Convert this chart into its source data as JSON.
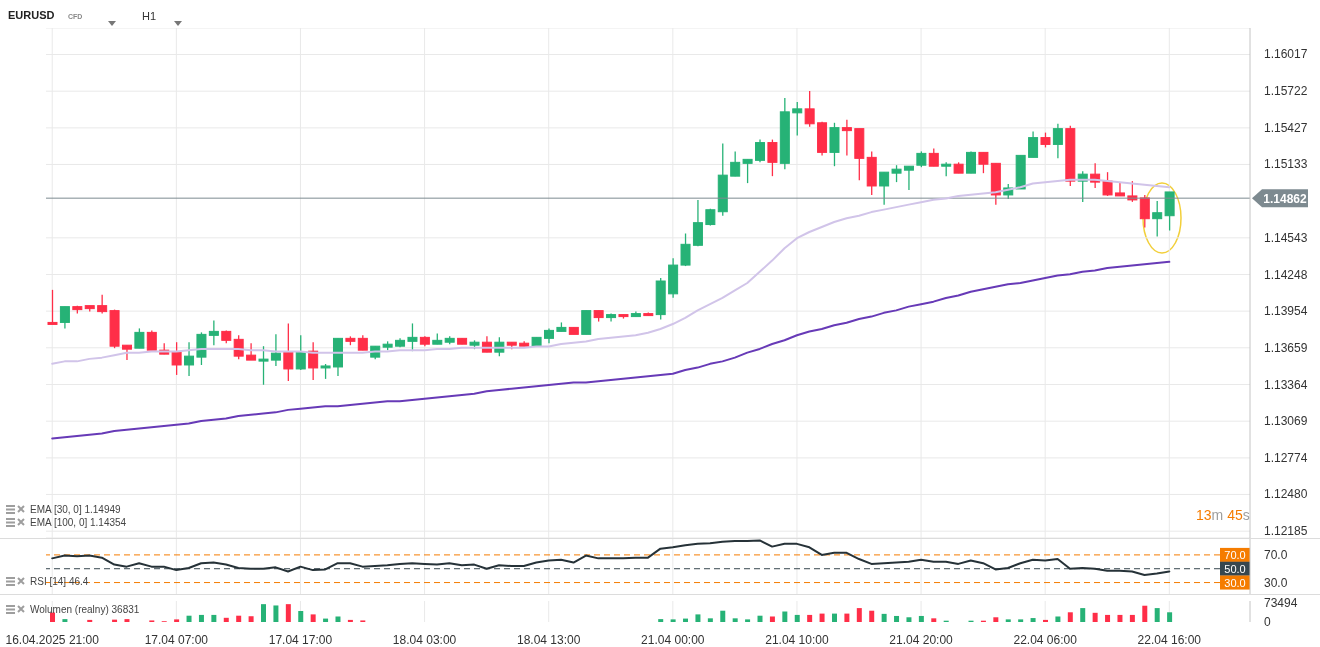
{
  "chart_data": [
    {
      "type": "candlestick",
      "title": "EURUSD",
      "categories": [
        null,
        null,
        null,
        null,
        null,
        null,
        null,
        null,
        null,
        null,
        null,
        null,
        null,
        null,
        null,
        null,
        null,
        null,
        null,
        null,
        null,
        null,
        null,
        null,
        null,
        null,
        null,
        null,
        null,
        null,
        null,
        null,
        null,
        null,
        null,
        null,
        null,
        null,
        null,
        null,
        null,
        null,
        null,
        null,
        null,
        null,
        null,
        null,
        null,
        null,
        null,
        null,
        null,
        null,
        null,
        null,
        null,
        null,
        null,
        null,
        null,
        null,
        null,
        null,
        null,
        null,
        null,
        null,
        null,
        null,
        null,
        null,
        null,
        null,
        null,
        null,
        null,
        null,
        null,
        null,
        null,
        null,
        null,
        null,
        null,
        null,
        null,
        null,
        null,
        null,
        null,
        null,
        null,
        null,
        null,
        null,
        null
      ],
      "ohlc": [
        [
          1.13863,
          1.14125,
          1.13847,
          1.13847
        ],
        [
          1.13863,
          1.1399,
          1.13815,
          1.1399
        ],
        [
          1.1399,
          1.13998,
          1.13934,
          1.13966
        ],
        [
          1.13998,
          1.13998,
          1.1395,
          1.13974
        ],
        [
          1.13998,
          1.14085,
          1.13934,
          1.1395
        ],
        [
          1.13958,
          1.13966,
          1.13656,
          1.13672
        ],
        [
          1.1368,
          1.1368,
          1.1356,
          1.13648
        ],
        [
          1.13656,
          1.13815,
          1.13656,
          1.13783
        ],
        [
          1.13783,
          1.13799,
          1.1364,
          1.1364
        ],
        [
          1.1364,
          1.13696,
          1.13608,
          1.13608
        ],
        [
          1.13624,
          1.13704,
          1.13441,
          1.13521
        ],
        [
          1.13521,
          1.13704,
          1.13433,
          1.13592
        ],
        [
          1.13584,
          1.13783,
          1.13521,
          1.13767
        ],
        [
          1.13759,
          1.13878,
          1.1368,
          1.13791
        ],
        [
          1.13791,
          1.13799,
          1.13696,
          1.13719
        ],
        [
          1.13727,
          1.13759,
          1.13568,
          1.13592
        ],
        [
          1.136,
          1.13696,
          1.1356,
          1.1356
        ],
        [
          1.13552,
          1.13672,
          1.13362,
          1.13568
        ],
        [
          1.1356,
          1.13767,
          1.13513,
          1.13616
        ],
        [
          1.13624,
          1.13855,
          1.13393,
          1.13489
        ],
        [
          1.13489,
          1.13759,
          1.13481,
          1.13624
        ],
        [
          1.13632,
          1.13704,
          1.13401,
          1.13497
        ],
        [
          1.13497,
          1.13529,
          1.13409,
          1.13513
        ],
        [
          1.13505,
          1.13735,
          1.13433,
          1.13735
        ],
        [
          1.13735,
          1.13751,
          1.1368,
          1.13711
        ],
        [
          1.13735,
          1.13759,
          1.1364,
          1.1364
        ],
        [
          1.13584,
          1.13672,
          1.13568,
          1.13672
        ],
        [
          1.13664,
          1.13711,
          1.1364,
          1.13688
        ],
        [
          1.13672,
          1.13735,
          1.13664,
          1.13719
        ],
        [
          1.13711,
          1.13855,
          1.13632,
          1.13743
        ],
        [
          1.13743,
          1.13751,
          1.13672,
          1.13688
        ],
        [
          1.13688,
          1.13775,
          1.13688,
          1.13719
        ],
        [
          1.13704,
          1.13751,
          1.13688,
          1.13735
        ],
        [
          1.13735,
          1.13735,
          1.13688,
          1.13688
        ],
        [
          1.1368,
          1.13719,
          1.13648,
          1.13704
        ],
        [
          1.13704,
          1.13751,
          1.13624,
          1.13624
        ],
        [
          1.13624,
          1.13743,
          1.13592,
          1.13704
        ],
        [
          1.13704,
          1.13704,
          1.13648,
          1.1368
        ],
        [
          1.13696,
          1.13711,
          1.13672,
          1.13672
        ],
        [
          1.13672,
          1.13743,
          1.13672,
          1.13743
        ],
        [
          1.13735,
          1.13815,
          1.13696,
          1.13799
        ],
        [
          1.13791,
          1.13863,
          1.13791,
          1.13823
        ],
        [
          1.13823,
          1.13823,
          1.13767,
          1.13767
        ],
        [
          1.13767,
          1.13958,
          1.13767,
          1.13958
        ],
        [
          1.13958,
          1.13958,
          1.1387,
          1.13902
        ],
        [
          1.13902,
          1.13934,
          1.1387,
          1.13926
        ],
        [
          1.13926,
          1.13926,
          1.13894,
          1.1391
        ],
        [
          1.1391,
          1.1395,
          1.1391,
          1.13934
        ],
        [
          1.13934,
          1.13942,
          1.13918,
          1.13918
        ],
        [
          1.13926,
          1.1422,
          1.13886,
          1.14196
        ],
        [
          1.14093,
          1.14379,
          1.14061,
          1.14324
        ],
        [
          1.14324,
          1.14578,
          1.14316,
          1.14491
        ],
        [
          1.14483,
          1.14848,
          1.14475,
          1.14665
        ],
        [
          1.1465,
          1.14777,
          1.14642,
          1.14769
        ],
        [
          1.14753,
          1.15301,
          1.14721,
          1.15047
        ],
        [
          1.15039,
          1.15238,
          1.15039,
          1.1515
        ],
        [
          1.15142,
          1.15174,
          1.14983,
          1.15174
        ],
        [
          1.15166,
          1.15333,
          1.1515,
          1.15309
        ],
        [
          1.15309,
          1.15333,
          1.15039,
          1.1515
        ],
        [
          1.15142,
          1.15667,
          1.15095,
          1.15556
        ],
        [
          1.15548,
          1.15635,
          1.15365,
          1.1558
        ],
        [
          1.1558,
          1.15723,
          1.15437,
          1.1546
        ],
        [
          1.15468,
          1.15476,
          1.15206,
          1.1523
        ],
        [
          1.1523,
          1.15468,
          1.15119,
          1.15429
        ],
        [
          1.15429,
          1.15492,
          1.15206,
          1.15405
        ],
        [
          1.15421,
          1.15421,
          1.15007,
          1.15182
        ],
        [
          1.1519,
          1.15238,
          1.14888,
          1.1496
        ],
        [
          1.1496,
          1.15071,
          1.14809,
          1.15071
        ],
        [
          1.15063,
          1.15127,
          1.14991,
          1.15095
        ],
        [
          1.15087,
          1.15119,
          1.14928,
          1.15119
        ],
        [
          1.15127,
          1.15238,
          1.15111,
          1.15222
        ],
        [
          1.15222,
          1.15262,
          1.15119,
          1.15119
        ],
        [
          1.15119,
          1.1515,
          1.15039,
          1.15135
        ],
        [
          1.15135,
          1.1515,
          1.15063,
          1.15063
        ],
        [
          1.15063,
          1.15238,
          1.15063,
          1.1523
        ],
        [
          1.1523,
          1.1523,
          1.15063,
          1.15135
        ],
        [
          1.15142,
          1.15142,
          1.14809,
          1.14888
        ],
        [
          1.14888,
          1.14976,
          1.14856,
          1.14944
        ],
        [
          1.14936,
          1.15206,
          1.14936,
          1.15206
        ],
        [
          1.1519,
          1.15397,
          1.1519,
          1.15349
        ],
        [
          1.15349,
          1.15389,
          1.1527,
          1.15294
        ],
        [
          1.15294,
          1.1546,
          1.15182,
          1.15421
        ],
        [
          1.15421,
          1.15445,
          1.1496,
          1.14999
        ],
        [
          1.14999,
          1.15079,
          1.14832,
          1.15055
        ],
        [
          1.15055,
          1.15142,
          1.14944,
          1.14991
        ],
        [
          1.14999,
          1.15071,
          1.1488,
          1.14888
        ],
        [
          1.14904,
          1.14983,
          1.1488,
          1.1488
        ],
        [
          1.1488,
          1.14999,
          1.14832,
          1.14848
        ],
        [
          1.14864,
          1.14888,
          1.14626,
          1.14697
        ],
        [
          1.14697,
          1.1484,
          1.14554,
          1.14745
        ],
        [
          1.14721,
          1.14912,
          1.14602,
          1.14912
        ],
        null,
        null,
        null,
        null,
        null,
        null
      ],
      "colors": [
        "#ff2e48",
        "#26b276",
        "#ff2e48",
        "#ff2e48",
        "#ff2e48",
        "#ff2e48",
        "#ff2e48",
        "#26b276",
        "#ff2e48",
        "#ff2e48",
        "#ff2e48",
        "#26b276",
        "#26b276",
        "#26b276",
        "#ff2e48",
        "#ff2e48",
        "#ff2e48",
        "#26b276",
        "#26b276",
        "#ff2e48",
        "#26b276",
        "#ff2e48",
        "#26b276",
        "#26b276",
        "#ff2e48",
        "#ff2e48",
        "#26b276",
        "#26b276",
        "#26b276",
        "#26b276",
        "#ff2e48",
        "#26b276",
        "#26b276",
        "#ff2e48",
        "#26b276",
        "#ff2e48",
        "#26b276",
        "#ff2e48",
        "#ff2e48",
        "#26b276",
        "#26b276",
        "#26b276",
        "#ff2e48",
        "#26b276",
        "#ff2e48",
        "#26b276",
        "#ff2e48",
        "#26b276",
        "#ff2e48",
        "#26b276",
        "#26b276",
        "#26b276",
        "#26b276",
        "#26b276",
        "#26b276",
        "#26b276",
        "#26b276",
        "#26b276",
        "#ff2e48",
        "#26b276",
        "#26b276",
        "#ff2e48",
        "#ff2e48",
        "#26b276",
        "#ff2e48",
        "#ff2e48",
        "#ff2e48",
        "#26b276",
        "#26b276",
        "#26b276",
        "#26b276",
        "#ff2e48",
        "#26b276",
        "#ff2e48",
        "#26b276",
        "#ff2e48",
        "#ff2e48",
        "#26b276",
        "#26b276",
        "#26b276",
        "#ff2e48",
        "#26b276",
        "#ff2e48",
        "#26b276",
        "#ff2e48",
        "#ff2e48",
        "#ff2e48",
        "#ff2e48",
        "#ff2e48",
        "#26b276",
        "#26b276",
        null,
        null,
        null,
        null,
        null,
        null
      ],
      "series": [
        {
          "type": "line",
          "color": "#d1c4e9",
          "values": [
            1.1353,
            1.1355,
            1.1355,
            1.1357,
            1.1358,
            1.136,
            1.1362,
            1.1362,
            1.1363,
            1.1363,
            1.1363,
            1.1364,
            1.1365,
            1.1365,
            1.1365,
            1.1365,
            1.1364,
            1.1364,
            1.1363,
            1.1363,
            1.1363,
            1.1362,
            1.1362,
            1.1362,
            1.1362,
            1.1362,
            1.1363,
            1.1363,
            1.1364,
            1.1364,
            1.1364,
            1.1365,
            1.1365,
            1.1366,
            1.1366,
            1.1366,
            1.1366,
            1.1366,
            1.1366,
            1.1367,
            1.1367,
            1.1369,
            1.137,
            1.1371,
            1.1373,
            1.1374,
            1.1375,
            1.1376,
            1.1378,
            1.1381,
            1.1385,
            1.139,
            1.1396,
            1.1401,
            1.1406,
            1.1412,
            1.1418,
            1.1427,
            1.1436,
            1.1446,
            1.1454,
            1.1459,
            1.1463,
            1.1467,
            1.147,
            1.1472,
            1.1475,
            1.1477,
            1.1479,
            1.1481,
            1.1483,
            1.1485,
            1.1486,
            1.1488,
            1.1489,
            1.149,
            1.1491,
            1.1493,
            1.1495,
            1.1498,
            1.1499,
            1.15,
            1.1501,
            1.1501,
            1.1501,
            1.15,
            1.1499,
            1.1498,
            1.1497,
            1.1496,
            1.1495,
            null,
            null,
            null,
            null,
            null,
            null
          ]
        },
        {
          "type": "line",
          "color": "#673ab7",
          "values": [
            1.1293,
            1.1294,
            1.1295,
            1.1296,
            1.1297,
            1.1299,
            1.13,
            1.1301,
            1.1302,
            1.1303,
            1.1304,
            1.1305,
            1.1307,
            1.1308,
            1.1309,
            1.1311,
            1.1312,
            1.1313,
            1.1314,
            1.1316,
            1.1317,
            1.1318,
            1.1319,
            1.1319,
            1.132,
            1.1321,
            1.1322,
            1.1323,
            1.1323,
            1.1324,
            1.1325,
            1.1326,
            1.1327,
            1.1328,
            1.1329,
            1.1331,
            1.1332,
            1.1333,
            1.1334,
            1.1335,
            1.1336,
            1.1337,
            1.1338,
            1.1338,
            1.1339,
            1.134,
            1.1341,
            1.1342,
            1.1343,
            1.1344,
            1.1345,
            1.1348,
            1.135,
            1.1353,
            1.1355,
            1.1358,
            1.1362,
            1.1365,
            1.1369,
            1.1372,
            1.1376,
            1.1379,
            1.1381,
            1.1384,
            1.1386,
            1.1389,
            1.1391,
            1.1394,
            1.1396,
            1.1399,
            1.1401,
            1.1403,
            1.1406,
            1.1408,
            1.1411,
            1.1413,
            1.1415,
            1.1417,
            1.1418,
            1.142,
            1.1422,
            1.1424,
            1.1425,
            1.1427,
            1.1428,
            1.143,
            1.1431,
            1.1432,
            1.1433,
            1.1434,
            1.1435,
            null,
            null,
            null,
            null,
            null,
            null
          ]
        }
      ],
      "ylim": [
        1.1213,
        1.1623
      ],
      "yticks": [
        1.12185,
        {
          "value": 1.1248,
          "label": "1.12480"
        },
        1.12774,
        1.13069,
        1.13364,
        1.13659,
        1.13954,
        1.14248,
        1.14543,
        1.15133,
        1.15427,
        1.15722,
        1.16017
      ],
      "ref_lines": [
        {
          "axis": "y",
          "value": 1.14862,
          "label": "1.14862",
          "color": "#7d8a90",
          "line_style": "solid"
        }
      ],
      "grid": true,
      "tick_labels": "y",
      "annotations": [
        "CFD",
        "H1",
        "EMA [30, 0] 1.14949",
        "EMA [100, 0] 1.14354",
        "13m 45s"
      ]
    },
    {
      "type": "line",
      "categories": [
        null,
        null,
        null,
        null,
        null,
        null,
        null,
        null,
        null,
        null,
        null,
        null,
        null,
        null,
        null,
        null,
        null,
        null,
        null,
        null,
        null,
        null,
        null,
        null,
        null,
        null,
        null,
        null,
        null,
        null,
        null,
        null,
        null,
        null,
        null,
        null,
        null,
        null,
        null,
        null,
        null,
        null,
        null,
        null,
        null,
        null,
        null,
        null,
        null,
        null,
        null,
        null,
        null,
        null,
        null,
        null,
        null,
        null,
        null,
        null,
        null,
        null,
        null,
        null,
        null,
        null,
        null,
        null,
        null,
        null,
        null,
        null,
        null,
        null,
        null,
        null,
        null,
        null,
        null,
        null,
        null,
        null,
        null,
        null,
        null,
        null,
        null,
        null,
        null,
        null,
        null,
        null,
        null,
        null,
        null,
        null,
        null
      ],
      "series": [
        {
          "color": "#263238",
          "values": [
            65,
            69,
            68,
            69,
            66,
            56,
            53,
            58,
            53,
            53,
            48,
            51,
            58,
            59,
            56,
            51,
            50,
            50,
            52,
            46,
            53,
            48,
            49,
            58,
            58,
            53,
            54,
            55,
            57,
            58,
            57,
            56,
            58,
            55,
            56,
            50,
            55,
            54,
            54,
            59,
            62,
            63,
            59,
            69,
            65,
            65,
            65,
            66,
            66,
            79,
            81,
            84,
            86,
            87,
            89,
            90,
            90,
            91,
            82,
            86,
            86,
            81,
            70,
            73,
            73,
            64,
            57,
            58,
            59,
            60,
            63,
            60,
            60,
            57,
            62,
            58,
            49,
            51,
            58,
            63,
            62,
            64,
            50,
            51,
            50,
            47,
            47,
            46,
            41,
            43,
            46,
            null,
            null,
            null,
            null,
            null,
            null
          ]
        }
      ],
      "ylim": [
        12,
        93
      ],
      "yticks": [
        {
          "value": 30,
          "label": "30.0"
        },
        {
          "value": 70,
          "label": "70.0"
        }
      ],
      "ref_lines": [
        {
          "axis": "y",
          "value": 70,
          "label": "70.0",
          "color": "#f57c00",
          "line_style": "dashed"
        },
        {
          "axis": "y",
          "value": 50,
          "label": "50.0",
          "color": "#37474f",
          "line_style": "dashed"
        },
        {
          "axis": "y",
          "value": 30,
          "label": "30.0",
          "color": "#f57c00",
          "line_style": "dashed"
        }
      ],
      "grid": "x",
      "tick_labels": "y",
      "annotations": [
        "RSI [14] 46.4"
      ]
    },
    {
      "type": "bar",
      "categories": [
        "16.04.2025 21:00",
        null,
        null,
        null,
        null,
        null,
        null,
        null,
        null,
        null,
        "17.04 07:00",
        null,
        null,
        null,
        null,
        null,
        null,
        null,
        null,
        null,
        "17.04 17:00",
        null,
        null,
        null,
        null,
        null,
        null,
        null,
        null,
        null,
        "18.04 03:00",
        null,
        null,
        null,
        null,
        null,
        null,
        null,
        null,
        null,
        "18.04 13:00",
        null,
        null,
        null,
        null,
        null,
        null,
        null,
        null,
        null,
        "21.04 00:00",
        null,
        null,
        null,
        null,
        null,
        null,
        null,
        null,
        null,
        "21.04 10:00",
        null,
        null,
        null,
        null,
        null,
        null,
        null,
        null,
        null,
        "21.04 20:00",
        null,
        null,
        null,
        null,
        null,
        null,
        null,
        null,
        null,
        "22.04 06:00",
        null,
        null,
        null,
        null,
        null,
        null,
        null,
        null,
        null,
        "22.04 16:00",
        null,
        null,
        null,
        null,
        null,
        null
      ],
      "values": [
        36000,
        11000,
        null,
        8000,
        null,
        9000,
        11000,
        null,
        6000,
        3000,
        10000,
        24000,
        27000,
        27000,
        16000,
        24000,
        22000,
        68000,
        63000,
        68000,
        42000,
        29000,
        13000,
        21000,
        8000,
        6000,
        null,
        null,
        null,
        null,
        null,
        null,
        null,
        null,
        null,
        null,
        null,
        null,
        null,
        null,
        null,
        null,
        null,
        null,
        null,
        null,
        null,
        null,
        null,
        11000,
        10000,
        13000,
        29000,
        14000,
        43000,
        14000,
        10000,
        24000,
        21000,
        40000,
        27000,
        27000,
        32000,
        32000,
        32000,
        53000,
        43000,
        31000,
        23000,
        18000,
        23000,
        14000,
        5000,
        null,
        5000,
        5000,
        18000,
        10000,
        10000,
        15000,
        8000,
        21000,
        37000,
        53000,
        35000,
        27000,
        27000,
        27000,
        62000,
        53000,
        37000,
        null,
        null,
        null,
        null,
        null,
        null
      ],
      "colors": [
        "#ff2e48",
        "#26b276",
        "#ff2e48",
        "#ff2e48",
        "#ff2e48",
        "#ff2e48",
        "#ff2e48",
        "#26b276",
        "#ff2e48",
        "#ff2e48",
        "#ff2e48",
        "#26b276",
        "#26b276",
        "#26b276",
        "#ff2e48",
        "#ff2e48",
        "#ff2e48",
        "#26b276",
        "#26b276",
        "#ff2e48",
        "#26b276",
        "#ff2e48",
        "#26b276",
        "#26b276",
        "#ff2e48",
        "#ff2e48",
        "#26b276",
        "#26b276",
        "#26b276",
        "#26b276",
        "#ff2e48",
        "#26b276",
        "#26b276",
        "#ff2e48",
        "#26b276",
        "#ff2e48",
        "#26b276",
        "#ff2e48",
        "#ff2e48",
        "#26b276",
        "#26b276",
        "#26b276",
        "#ff2e48",
        "#26b276",
        "#ff2e48",
        "#26b276",
        "#ff2e48",
        "#26b276",
        "#ff2e48",
        "#26b276",
        "#26b276",
        "#26b276",
        "#26b276",
        "#26b276",
        "#26b276",
        "#26b276",
        "#26b276",
        "#26b276",
        "#ff2e48",
        "#26b276",
        "#26b276",
        "#ff2e48",
        "#ff2e48",
        "#26b276",
        "#ff2e48",
        "#ff2e48",
        "#ff2e48",
        "#26b276",
        "#26b276",
        "#26b276",
        "#26b276",
        "#ff2e48",
        "#26b276",
        "#ff2e48",
        "#26b276",
        "#ff2e48",
        "#ff2e48",
        "#26b276",
        "#26b276",
        "#26b276",
        "#ff2e48",
        "#26b276",
        "#ff2e48",
        "#26b276",
        "#ff2e48",
        "#ff2e48",
        "#ff2e48",
        "#ff2e48",
        "#ff2e48",
        "#26b276",
        "#26b276",
        null,
        null,
        null,
        null,
        null,
        null
      ],
      "ylim": [
        0,
        80000
      ],
      "yticks": [
        0,
        73494
      ],
      "grid": "x",
      "annotations": [
        "Wolumen (realny) 36831"
      ]
    }
  ]
}
